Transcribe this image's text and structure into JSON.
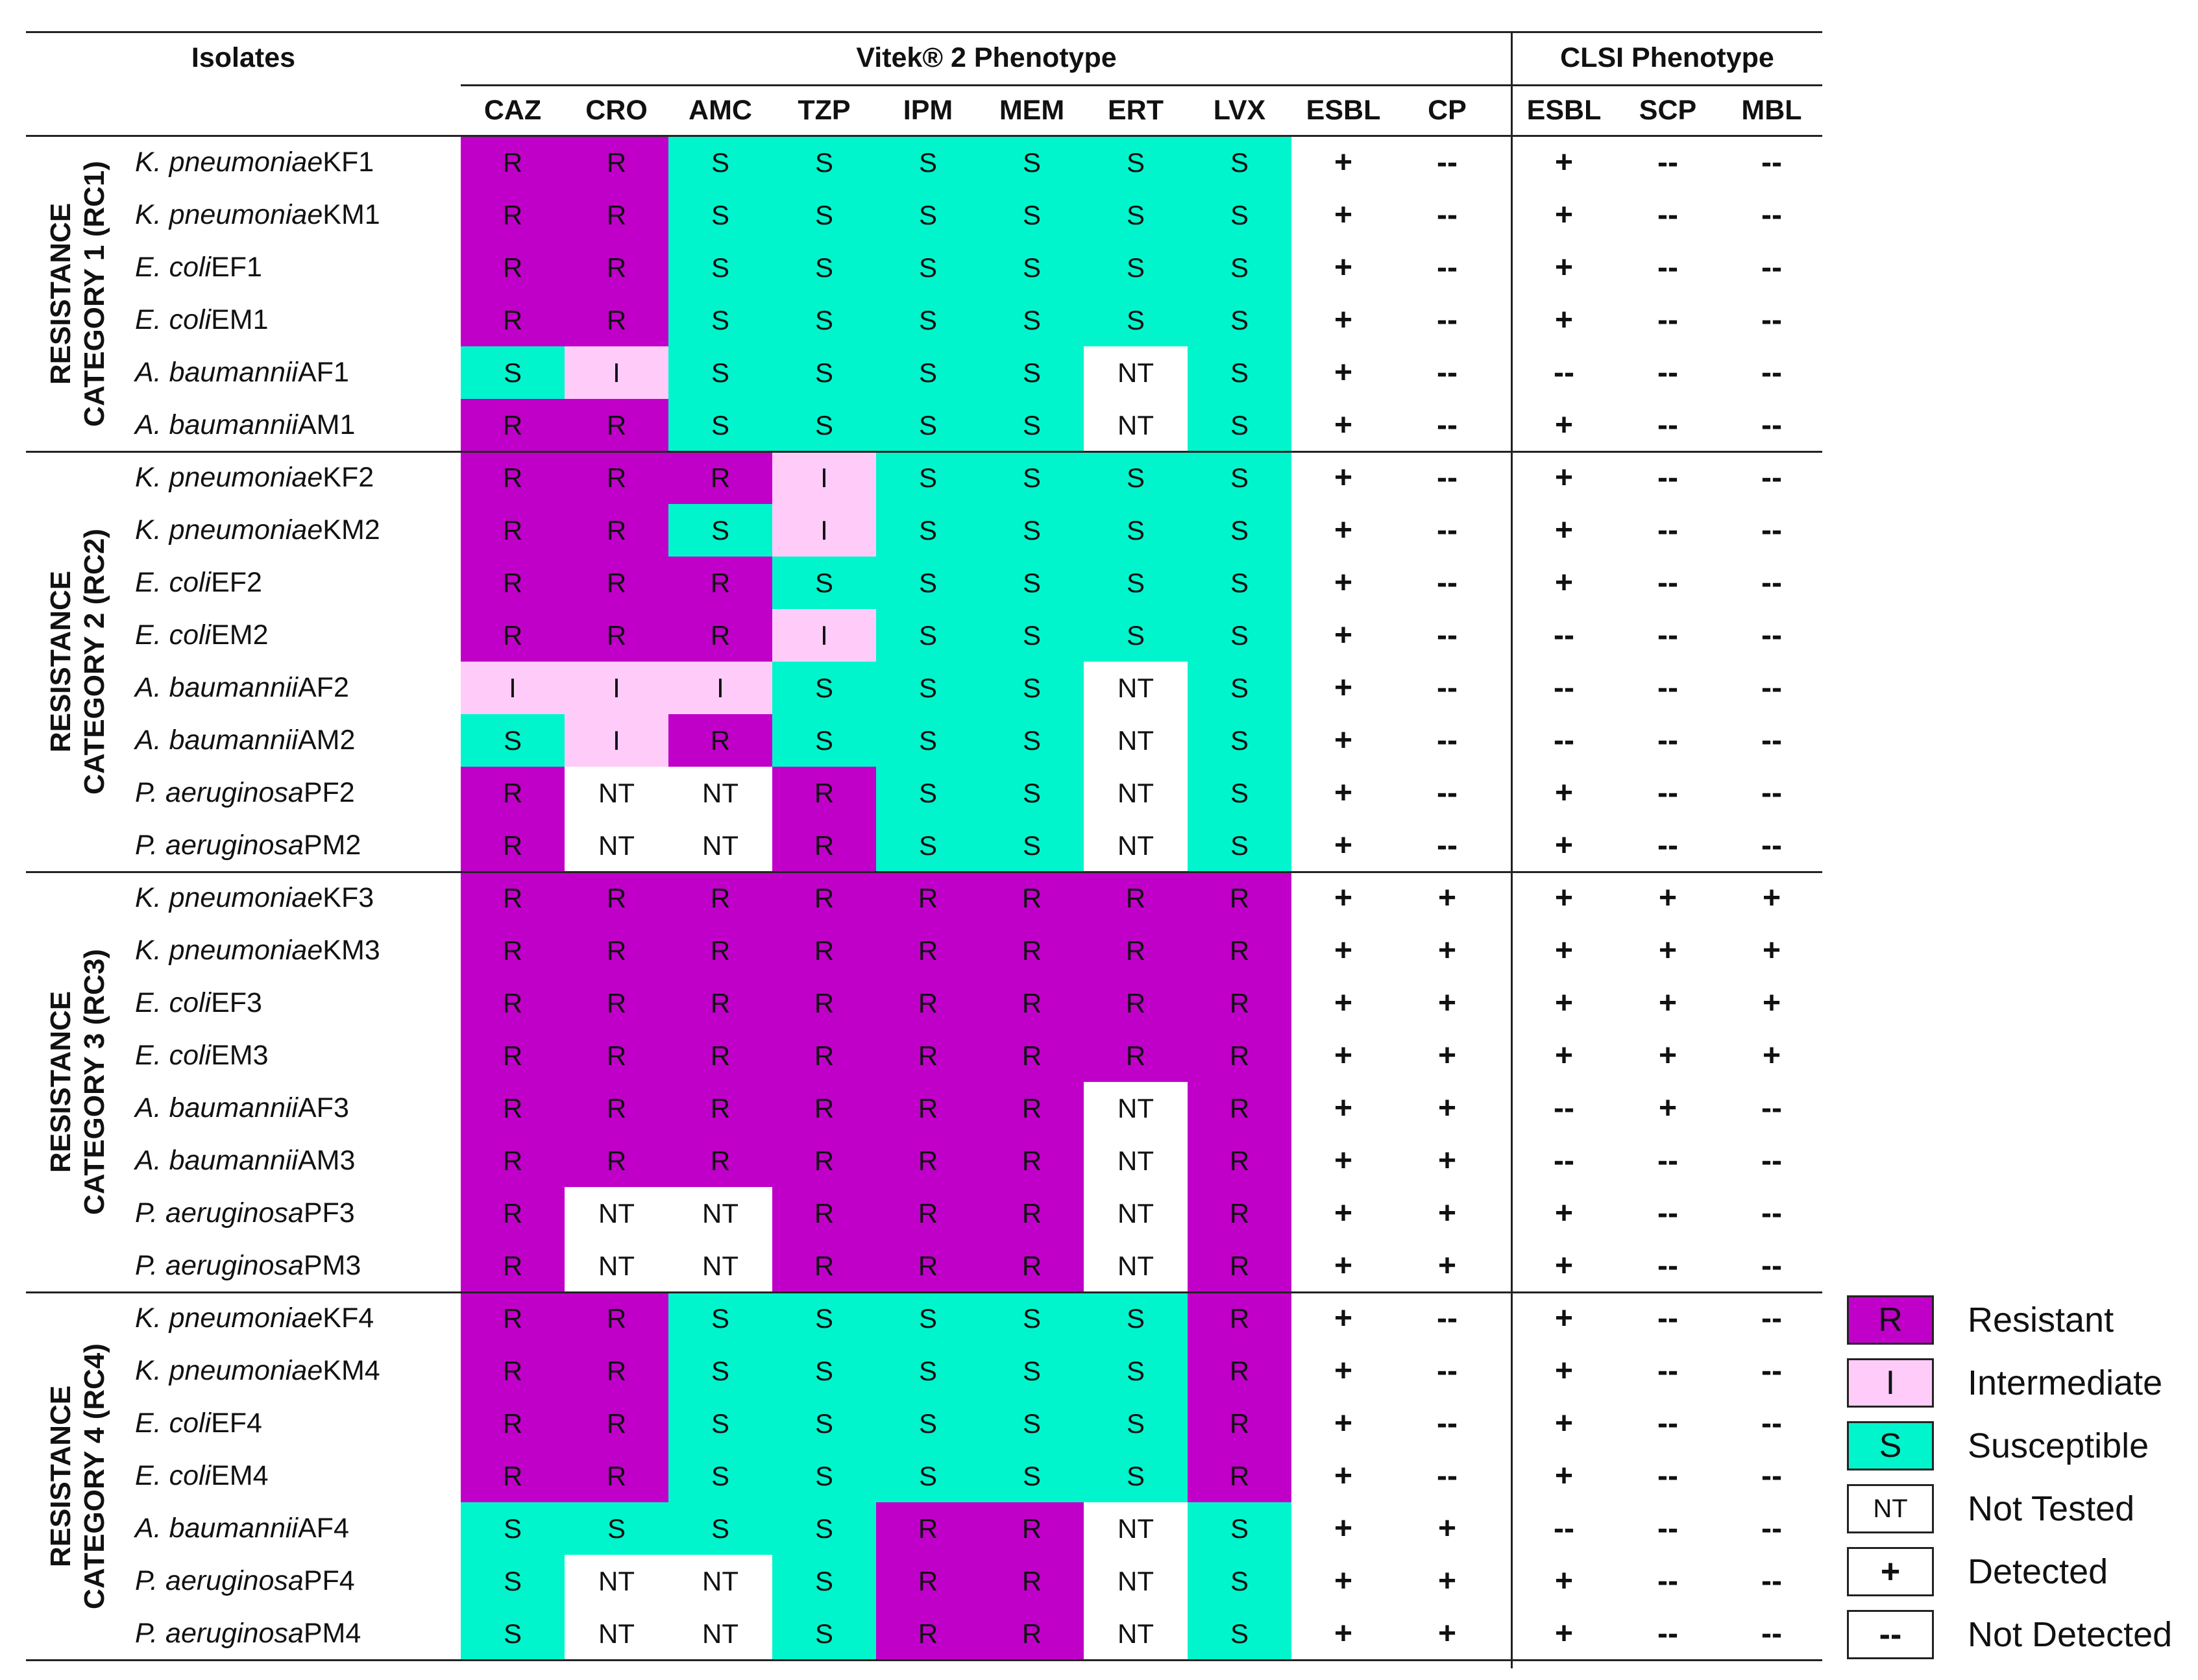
{
  "headers": {
    "isolates": "Isolates",
    "vitek_group": "Vitek® 2 Phenotype",
    "clsi_group": "CLSI Phenotype",
    "columns": [
      "CAZ",
      "CRO",
      "AMC",
      "TZP",
      "IPM",
      "MEM",
      "ERT",
      "LVX",
      "ESBL",
      "CP",
      "ESBL",
      "SCP",
      "MBL"
    ]
  },
  "colors": {
    "R": "#c000c8",
    "I": "#ffccfa",
    "S": "#00f5cc",
    "NT": "#ffffff"
  },
  "symbols": {
    "detected": "+",
    "not_detected": "--"
  },
  "categories": [
    {
      "label": "RESISTANCE\nCATEGORY 1 (RC1)",
      "rows": [
        {
          "species": "K. pneumoniae",
          "id": "KF1",
          "vitek": [
            "R",
            "R",
            "S",
            "S",
            "S",
            "S",
            "S",
            "S"
          ],
          "detect": [
            "+",
            "--",
            "+",
            "--",
            "--"
          ]
        },
        {
          "species": "K. pneumoniae",
          "id": "KM1",
          "vitek": [
            "R",
            "R",
            "S",
            "S",
            "S",
            "S",
            "S",
            "S"
          ],
          "detect": [
            "+",
            "--",
            "+",
            "--",
            "--"
          ]
        },
        {
          "species": "E. coli",
          "id": "EF1",
          "vitek": [
            "R",
            "R",
            "S",
            "S",
            "S",
            "S",
            "S",
            "S"
          ],
          "detect": [
            "+",
            "--",
            "+",
            "--",
            "--"
          ]
        },
        {
          "species": "E. coli",
          "id": "EM1",
          "vitek": [
            "R",
            "R",
            "S",
            "S",
            "S",
            "S",
            "S",
            "S"
          ],
          "detect": [
            "+",
            "--",
            "+",
            "--",
            "--"
          ]
        },
        {
          "species": "A. baumannii",
          "id": "AF1",
          "vitek": [
            "S",
            "I",
            "S",
            "S",
            "S",
            "S",
            "NT",
            "S"
          ],
          "detect": [
            "+",
            "--",
            "--",
            "--",
            "--"
          ]
        },
        {
          "species": "A. baumannii",
          "id": "AM1",
          "vitek": [
            "R",
            "R",
            "S",
            "S",
            "S",
            "S",
            "NT",
            "S"
          ],
          "detect": [
            "+",
            "--",
            "+",
            "--",
            "--"
          ]
        }
      ]
    },
    {
      "label": "RESISTANCE\nCATEGORY 2 (RC2)",
      "rows": [
        {
          "species": "K. pneumoniae",
          "id": "KF2",
          "vitek": [
            "R",
            "R",
            "R",
            "I",
            "S",
            "S",
            "S",
            "S"
          ],
          "detect": [
            "+",
            "--",
            "+",
            "--",
            "--"
          ]
        },
        {
          "species": "K. pneumoniae",
          "id": "KM2",
          "vitek": [
            "R",
            "R",
            "S",
            "I",
            "S",
            "S",
            "S",
            "S"
          ],
          "detect": [
            "+",
            "--",
            "+",
            "--",
            "--"
          ]
        },
        {
          "species": "E. coli",
          "id": "EF2",
          "vitek": [
            "R",
            "R",
            "R",
            "S",
            "S",
            "S",
            "S",
            "S"
          ],
          "detect": [
            "+",
            "--",
            "+",
            "--",
            "--"
          ]
        },
        {
          "species": "E. coli",
          "id": "EM2",
          "vitek": [
            "R",
            "R",
            "R",
            "I",
            "S",
            "S",
            "S",
            "S"
          ],
          "detect": [
            "+",
            "--",
            "--",
            "--",
            "--"
          ]
        },
        {
          "species": "A. baumannii",
          "id": "AF2",
          "vitek": [
            "I",
            "I",
            "I",
            "S",
            "S",
            "S",
            "NT",
            "S"
          ],
          "detect": [
            "+",
            "--",
            "--",
            "--",
            "--"
          ]
        },
        {
          "species": "A. baumannii",
          "id": "AM2",
          "vitek": [
            "S",
            "I",
            "R",
            "S",
            "S",
            "S",
            "NT",
            "S"
          ],
          "detect": [
            "+",
            "--",
            "--",
            "--",
            "--"
          ]
        },
        {
          "species": "P. aeruginosa",
          "id": "PF2",
          "vitek": [
            "R",
            "NT",
            "NT",
            "R",
            "S",
            "S",
            "NT",
            "S"
          ],
          "detect": [
            "+",
            "--",
            "+",
            "--",
            "--"
          ]
        },
        {
          "species": "P. aeruginosa",
          "id": "PM2",
          "vitek": [
            "R",
            "NT",
            "NT",
            "R",
            "S",
            "S",
            "NT",
            "S"
          ],
          "detect": [
            "+",
            "--",
            "+",
            "--",
            "--"
          ]
        }
      ]
    },
    {
      "label": "RESISTANCE\nCATEGORY 3 (RC3)",
      "rows": [
        {
          "species": "K. pneumoniae",
          "id": "KF3",
          "vitek": [
            "R",
            "R",
            "R",
            "R",
            "R",
            "R",
            "R",
            "R"
          ],
          "detect": [
            "+",
            "+",
            "+",
            "+",
            "+"
          ]
        },
        {
          "species": "K. pneumoniae",
          "id": "KM3",
          "vitek": [
            "R",
            "R",
            "R",
            "R",
            "R",
            "R",
            "R",
            "R"
          ],
          "detect": [
            "+",
            "+",
            "+",
            "+",
            "+"
          ]
        },
        {
          "species": "E. coli",
          "id": "EF3",
          "vitek": [
            "R",
            "R",
            "R",
            "R",
            "R",
            "R",
            "R",
            "R"
          ],
          "detect": [
            "+",
            "+",
            "+",
            "+",
            "+"
          ]
        },
        {
          "species": "E. coli",
          "id": "EM3",
          "vitek": [
            "R",
            "R",
            "R",
            "R",
            "R",
            "R",
            "R",
            "R"
          ],
          "detect": [
            "+",
            "+",
            "+",
            "+",
            "+"
          ]
        },
        {
          "species": "A. baumannii",
          "id": "AF3",
          "vitek": [
            "R",
            "R",
            "R",
            "R",
            "R",
            "R",
            "NT",
            "R"
          ],
          "detect": [
            "+",
            "+",
            "--",
            "+",
            "--"
          ]
        },
        {
          "species": "A. baumannii",
          "id": "AM3",
          "vitek": [
            "R",
            "R",
            "R",
            "R",
            "R",
            "R",
            "NT",
            "R"
          ],
          "detect": [
            "+",
            "+",
            "--",
            "--",
            "--"
          ]
        },
        {
          "species": "P. aeruginosa",
          "id": "PF3",
          "vitek": [
            "R",
            "NT",
            "NT",
            "R",
            "R",
            "R",
            "NT",
            "R"
          ],
          "detect": [
            "+",
            "+",
            "+",
            "--",
            "--"
          ]
        },
        {
          "species": "P. aeruginosa",
          "id": "PM3",
          "vitek": [
            "R",
            "NT",
            "NT",
            "R",
            "R",
            "R",
            "NT",
            "R"
          ],
          "detect": [
            "+",
            "+",
            "+",
            "--",
            "--"
          ]
        }
      ]
    },
    {
      "label": "RESISTANCE\nCATEGORY 4 (RC4)",
      "rows": [
        {
          "species": "K. pneumoniae",
          "id": "KF4",
          "vitek": [
            "R",
            "R",
            "S",
            "S",
            "S",
            "S",
            "S",
            "R"
          ],
          "detect": [
            "+",
            "--",
            "+",
            "--",
            "--"
          ]
        },
        {
          "species": "K. pneumoniae",
          "id": "KM4",
          "vitek": [
            "R",
            "R",
            "S",
            "S",
            "S",
            "S",
            "S",
            "R"
          ],
          "detect": [
            "+",
            "--",
            "+",
            "--",
            "--"
          ]
        },
        {
          "species": "E. coli",
          "id": "EF4",
          "vitek": [
            "R",
            "R",
            "S",
            "S",
            "S",
            "S",
            "S",
            "R"
          ],
          "detect": [
            "+",
            "--",
            "+",
            "--",
            "--"
          ]
        },
        {
          "species": "E. coli",
          "id": "EM4",
          "vitek": [
            "R",
            "R",
            "S",
            "S",
            "S",
            "S",
            "S",
            "R"
          ],
          "detect": [
            "+",
            "--",
            "+",
            "--",
            "--"
          ]
        },
        {
          "species": "A. baumannii",
          "id": "AF4",
          "vitek": [
            "S",
            "S",
            "S",
            "S",
            "R",
            "R",
            "NT",
            "S"
          ],
          "detect": [
            "+",
            "+",
            "--",
            "--",
            "--"
          ]
        },
        {
          "species": "P. aeruginosa",
          "id": "PF4",
          "vitek": [
            "S",
            "NT",
            "NT",
            "S",
            "R",
            "R",
            "NT",
            "S"
          ],
          "detect": [
            "+",
            "+",
            "+",
            "--",
            "--"
          ]
        },
        {
          "species": "P. aeruginosa",
          "id": "PM4",
          "vitek": [
            "S",
            "NT",
            "NT",
            "S",
            "R",
            "R",
            "NT",
            "S"
          ],
          "detect": [
            "+",
            "+",
            "+",
            "--",
            "--"
          ]
        }
      ]
    }
  ],
  "legend": [
    {
      "key": "R",
      "symbol": "R",
      "label": "Resistant",
      "color": "#c000c8"
    },
    {
      "key": "I",
      "symbol": "I",
      "label": "Intermediate",
      "color": "#ffccfa"
    },
    {
      "key": "S",
      "symbol": "S",
      "label": "Susceptible",
      "color": "#00f5cc"
    },
    {
      "key": "NT",
      "symbol": "NT",
      "label": "Not Tested",
      "color": "#ffffff"
    },
    {
      "key": "detected",
      "symbol": "+",
      "label": "Detected",
      "color": "#ffffff"
    },
    {
      "key": "not_detected",
      "symbol": "--",
      "label": "Not Detected",
      "color": "#ffffff"
    }
  ]
}
